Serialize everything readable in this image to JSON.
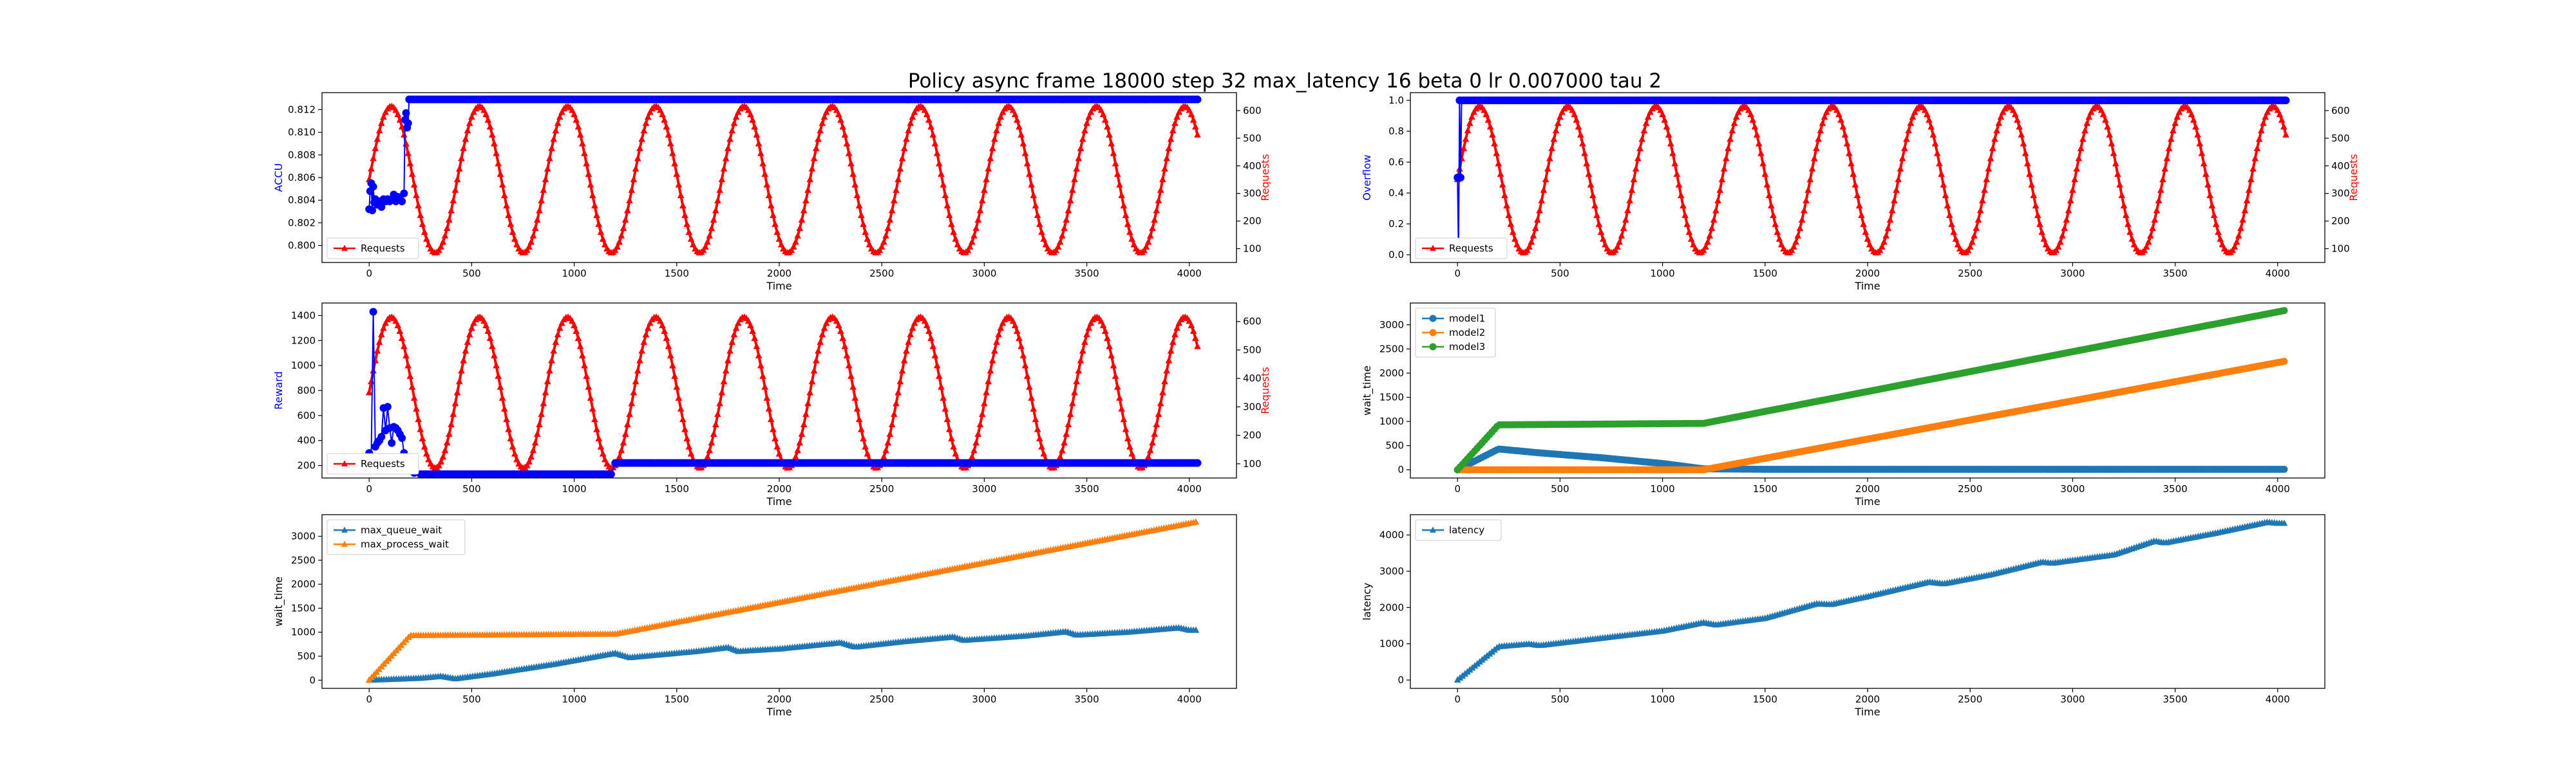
{
  "figure": {
    "title": "Policy async frame 18000 step 32 max_latency 16 beta 0 lr 0.007000 tau 2"
  },
  "chart_data": [
    {
      "id": "accu",
      "type": "scatter",
      "xlabel": "Time",
      "ylabel": "ACCU",
      "ylabel_color": "#0000ff",
      "xlim": [
        -230,
        4230
      ],
      "ylim": [
        0.7985,
        0.8135
      ],
      "xticks": [
        0,
        500,
        1000,
        1500,
        2000,
        2500,
        3000,
        3500,
        4000
      ],
      "yticks": [
        0.8,
        0.802,
        0.804,
        0.806,
        0.808,
        0.81,
        0.812
      ],
      "ytick_labels": [
        "0.800",
        "0.802",
        "0.804",
        "0.806",
        "0.808",
        "0.810",
        "0.812"
      ],
      "grid": false,
      "legend": {
        "placement": "lower-left",
        "entries": [
          "Requests"
        ]
      },
      "series": [
        {
          "color": "#0000ff",
          "marker": "circle",
          "points": [
            [
              0,
              0.8032
            ],
            [
              5,
              0.8048
            ],
            [
              10,
              0.8055
            ],
            [
              15,
              0.8031
            ],
            [
              20,
              0.8052
            ],
            [
              25,
              0.8038
            ],
            [
              30,
              0.8041
            ],
            [
              40,
              0.8036
            ],
            [
              50,
              0.8039
            ],
            [
              60,
              0.8034
            ],
            [
              70,
              0.8041
            ],
            [
              80,
              0.8039
            ],
            [
              90,
              0.8041
            ],
            [
              100,
              0.8039
            ],
            [
              110,
              0.8041
            ],
            [
              120,
              0.8045
            ],
            [
              130,
              0.8039
            ],
            [
              140,
              0.8043
            ],
            [
              150,
              0.8041
            ],
            [
              160,
              0.8039
            ],
            [
              170,
              0.8046
            ],
            [
              175,
              0.8111
            ],
            [
              180,
              0.8117
            ],
            [
              185,
              0.8104
            ],
            [
              190,
              0.8108
            ],
            [
              195,
              0.8129
            ],
            [
              200,
              0.8129
            ],
            [
              4040,
              0.8129
            ]
          ]
        }
      ],
      "secondary_axis": {
        "ylabel": "Requests",
        "ylabel_color": "#ff0000",
        "ylim": [
          50,
          665
        ],
        "yticks": [
          100,
          200,
          300,
          400,
          500,
          600
        ],
        "series": [
          {
            "name": "Requests",
            "color": "#ff0000",
            "marker": "triangle",
            "wave": {
              "center": 350,
              "amplitude": 265,
              "period": 430,
              "phase": 0
            },
            "x_range": [
              0,
              4040
            ]
          }
        ]
      }
    },
    {
      "id": "overflow",
      "type": "scatter",
      "xlabel": "Time",
      "ylabel": "Overflow",
      "ylabel_color": "#0000ff",
      "xlim": [
        -230,
        4230
      ],
      "ylim": [
        -0.05,
        1.05
      ],
      "xticks": [
        0,
        500,
        1000,
        1500,
        2000,
        2500,
        3000,
        3500,
        4000
      ],
      "yticks": [
        0.0,
        0.2,
        0.4,
        0.6,
        0.8,
        1.0
      ],
      "ytick_labels": [
        "0.0",
        "0.2",
        "0.4",
        "0.6",
        "0.8",
        "1.0"
      ],
      "grid": false,
      "legend": {
        "placement": "lower-left",
        "entries": [
          "Requests"
        ]
      },
      "series": [
        {
          "color": "#0000ff",
          "marker": "circle",
          "points": [
            [
              0,
              0.5
            ],
            [
              5,
              0.0
            ],
            [
              10,
              1.0
            ],
            [
              15,
              0.5
            ],
            [
              20,
              1.0
            ],
            [
              4040,
              1.0
            ]
          ]
        }
      ],
      "secondary_axis": {
        "ylabel": "Requests",
        "ylabel_color": "#ff0000",
        "ylim": [
          50,
          665
        ],
        "yticks": [
          100,
          200,
          300,
          400,
          500,
          600
        ],
        "series": [
          {
            "name": "Requests",
            "color": "#ff0000",
            "marker": "triangle",
            "wave": {
              "center": 350,
              "amplitude": 265,
              "period": 430,
              "phase": 0
            },
            "x_range": [
              0,
              4040
            ]
          }
        ]
      }
    },
    {
      "id": "reward",
      "type": "scatter",
      "xlabel": "Time",
      "ylabel": "Reward",
      "ylabel_color": "#0000ff",
      "xlim": [
        -230,
        4230
      ],
      "ylim": [
        100,
        1500
      ],
      "xticks": [
        0,
        500,
        1000,
        1500,
        2000,
        2500,
        3000,
        3500,
        4000
      ],
      "yticks": [
        200,
        400,
        600,
        800,
        1000,
        1200,
        1400
      ],
      "ytick_labels": [
        "200",
        "400",
        "600",
        "800",
        "1000",
        "1200",
        "1400"
      ],
      "grid": false,
      "legend": {
        "placement": "lower-left",
        "entries": [
          "Requests"
        ]
      },
      "series": [
        {
          "color": "#0000ff",
          "marker": "circle",
          "points": [
            [
              0,
              300
            ],
            [
              10,
              260
            ],
            [
              20,
              1430
            ],
            [
              30,
              350
            ],
            [
              40,
              380
            ],
            [
              50,
              400
            ],
            [
              60,
              430
            ],
            [
              70,
              660
            ],
            [
              80,
              480
            ],
            [
              90,
              670
            ],
            [
              100,
              500
            ],
            [
              110,
              380
            ],
            [
              120,
              510
            ],
            [
              130,
              500
            ],
            [
              140,
              480
            ],
            [
              150,
              450
            ],
            [
              160,
              420
            ],
            [
              170,
              300
            ],
            [
              180,
              250
            ],
            [
              190,
              200
            ],
            [
              200,
              170
            ],
            [
              220,
              140
            ],
            [
              250,
              130
            ],
            [
              1180,
              130
            ],
            [
              1200,
              220
            ],
            [
              4040,
              220
            ]
          ]
        }
      ],
      "secondary_axis": {
        "ylabel": "Requests",
        "ylabel_color": "#ff0000",
        "ylim": [
          50,
          665
        ],
        "yticks": [
          100,
          200,
          300,
          400,
          500,
          600
        ],
        "series": [
          {
            "name": "Requests",
            "color": "#ff0000",
            "marker": "triangle",
            "wave": {
              "center": 350,
              "amplitude": 265,
              "period": 430,
              "phase": 0
            },
            "x_range": [
              0,
              4040
            ]
          }
        ]
      }
    },
    {
      "id": "wait-models",
      "type": "line",
      "xlabel": "Time",
      "ylabel": "wait_time",
      "ylabel_color": "#000000",
      "xlim": [
        -230,
        4230
      ],
      "ylim": [
        -170,
        3450
      ],
      "xticks": [
        0,
        500,
        1000,
        1500,
        2000,
        2500,
        3000,
        3500,
        4000
      ],
      "yticks": [
        0,
        500,
        1000,
        1500,
        2000,
        2500,
        3000
      ],
      "ytick_labels": [
        "0",
        "500",
        "1000",
        "1500",
        "2000",
        "2500",
        "3000"
      ],
      "grid": false,
      "legend": {
        "placement": "upper-left",
        "entries": [
          "model1",
          "model2",
          "model3"
        ]
      },
      "series": [
        {
          "name": "model1",
          "color": "#1f77b4",
          "marker": "circle",
          "points": [
            [
              0,
              0
            ],
            [
              200,
              430
            ],
            [
              400,
              350
            ],
            [
              700,
              250
            ],
            [
              1000,
              130
            ],
            [
              1200,
              20
            ],
            [
              1500,
              10
            ],
            [
              4040,
              10
            ]
          ]
        },
        {
          "name": "model2",
          "color": "#ff7f0e",
          "marker": "circle",
          "points": [
            [
              0,
              0
            ],
            [
              200,
              0
            ],
            [
              1200,
              0
            ],
            [
              4040,
              2250
            ]
          ]
        },
        {
          "name": "model3",
          "color": "#2ca02c",
          "marker": "circle",
          "points": [
            [
              0,
              0
            ],
            [
              200,
              930
            ],
            [
              1200,
              960
            ],
            [
              4040,
              3300
            ]
          ]
        }
      ]
    },
    {
      "id": "max-wait",
      "type": "line",
      "xlabel": "Time",
      "ylabel": "wait_time",
      "ylabel_color": "#000000",
      "xlim": [
        -230,
        4230
      ],
      "ylim": [
        -170,
        3450
      ],
      "xticks": [
        0,
        500,
        1000,
        1500,
        2000,
        2500,
        3000,
        3500,
        4000
      ],
      "yticks": [
        0,
        500,
        1000,
        1500,
        2000,
        2500,
        3000
      ],
      "ytick_labels": [
        "0",
        "500",
        "1000",
        "1500",
        "2000",
        "2500",
        "3000"
      ],
      "grid": false,
      "legend": {
        "placement": "upper-left",
        "entries": [
          "max_queue_wait",
          "max_process_wait"
        ]
      },
      "series": [
        {
          "name": "max_queue_wait",
          "color": "#1f77b4",
          "marker": "triangle",
          "points": [
            [
              0,
              0
            ],
            [
              250,
              40
            ],
            [
              350,
              80
            ],
            [
              420,
              30
            ],
            [
              600,
              130
            ],
            [
              900,
              330
            ],
            [
              1200,
              560
            ],
            [
              1270,
              470
            ],
            [
              1600,
              600
            ],
            [
              1750,
              680
            ],
            [
              1800,
              600
            ],
            [
              2000,
              650
            ],
            [
              2300,
              780
            ],
            [
              2370,
              690
            ],
            [
              2600,
              800
            ],
            [
              2850,
              900
            ],
            [
              2900,
              830
            ],
            [
              3200,
              920
            ],
            [
              3400,
              1010
            ],
            [
              3450,
              940
            ],
            [
              3700,
              1000
            ],
            [
              3950,
              1090
            ],
            [
              4000,
              1040
            ],
            [
              4040,
              1040
            ]
          ]
        },
        {
          "name": "max_process_wait",
          "color": "#ff7f0e",
          "marker": "triangle",
          "points": [
            [
              0,
              0
            ],
            [
              200,
              930
            ],
            [
              1200,
              960
            ],
            [
              4040,
              3300
            ]
          ]
        }
      ]
    },
    {
      "id": "latency",
      "type": "line",
      "xlabel": "Time",
      "ylabel": "latency",
      "ylabel_color": "#000000",
      "xlim": [
        -230,
        4230
      ],
      "ylim": [
        -230,
        4560
      ],
      "xticks": [
        0,
        500,
        1000,
        1500,
        2000,
        2500,
        3000,
        3500,
        4000
      ],
      "yticks": [
        0,
        1000,
        2000,
        3000,
        4000
      ],
      "ytick_labels": [
        "0",
        "1000",
        "2000",
        "3000",
        "4000"
      ],
      "grid": false,
      "legend": {
        "placement": "upper-left",
        "entries": [
          "latency"
        ]
      },
      "series": [
        {
          "name": "latency",
          "color": "#1f77b4",
          "marker": "triangle",
          "points": [
            [
              0,
              0
            ],
            [
              200,
              920
            ],
            [
              350,
              990
            ],
            [
              400,
              950
            ],
            [
              700,
              1150
            ],
            [
              1000,
              1350
            ],
            [
              1200,
              1580
            ],
            [
              1260,
              1520
            ],
            [
              1500,
              1700
            ],
            [
              1750,
              2100
            ],
            [
              1820,
              2080
            ],
            [
              2000,
              2300
            ],
            [
              2300,
              2700
            ],
            [
              2370,
              2650
            ],
            [
              2600,
              2900
            ],
            [
              2850,
              3250
            ],
            [
              2900,
              3220
            ],
            [
              3200,
              3450
            ],
            [
              3400,
              3830
            ],
            [
              3450,
              3780
            ],
            [
              3700,
              4050
            ],
            [
              3950,
              4350
            ],
            [
              4000,
              4320
            ],
            [
              4040,
              4320
            ]
          ]
        }
      ]
    }
  ]
}
